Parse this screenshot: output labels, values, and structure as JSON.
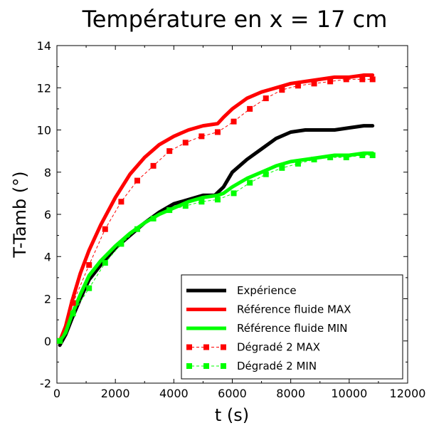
{
  "chart_data": {
    "type": "line",
    "title": "Température en x = 17 cm",
    "xlabel": "t (s)",
    "ylabel": "T-Tamb (°)",
    "xlim": [
      0,
      12000
    ],
    "ylim": [
      -2,
      14
    ],
    "xticks": [
      0,
      2000,
      4000,
      6000,
      8000,
      10000,
      12000
    ],
    "yticks": [
      -2,
      0,
      2,
      4,
      6,
      8,
      10,
      12,
      14
    ],
    "grid": false,
    "legend_position": "bottom-right",
    "series": [
      {
        "name": "Expérience",
        "style": "solid-thick",
        "color": "#000000",
        "x": [
          100,
          300,
          500,
          800,
          1100,
          1500,
          2000,
          2500,
          3000,
          3500,
          4000,
          4500,
          5000,
          5400,
          5700,
          6000,
          6500,
          7000,
          7500,
          8000,
          8500,
          9000,
          9500,
          10000,
          10500,
          10800
        ],
        "y": [
          -0.2,
          0.3,
          1.0,
          2.0,
          2.9,
          3.6,
          4.4,
          5.0,
          5.6,
          6.1,
          6.5,
          6.7,
          6.9,
          6.9,
          7.3,
          8.0,
          8.6,
          9.1,
          9.6,
          9.9,
          10.0,
          10.0,
          10.0,
          10.1,
          10.2,
          10.2
        ]
      },
      {
        "name": "Référence fluide MAX",
        "style": "solid-thick",
        "color": "#ff0000",
        "x": [
          100,
          300,
          500,
          800,
          1100,
          1500,
          2000,
          2500,
          3000,
          3500,
          4000,
          4500,
          5000,
          5500,
          5700,
          6000,
          6500,
          7000,
          7500,
          8000,
          8500,
          9000,
          9500,
          10000,
          10500,
          10800
        ],
        "y": [
          0.0,
          0.7,
          1.8,
          3.2,
          4.3,
          5.5,
          6.8,
          7.9,
          8.7,
          9.3,
          9.7,
          10.0,
          10.2,
          10.3,
          10.6,
          11.0,
          11.5,
          11.8,
          12.0,
          12.2,
          12.3,
          12.4,
          12.5,
          12.5,
          12.6,
          12.6
        ]
      },
      {
        "name": "Référence fluide MIN",
        "style": "solid-thick",
        "color": "#00ff00",
        "x": [
          100,
          300,
          500,
          800,
          1100,
          1500,
          2000,
          2500,
          3000,
          3500,
          4000,
          4500,
          5000,
          5500,
          5700,
          6000,
          6500,
          7000,
          7500,
          8000,
          8500,
          9000,
          9500,
          10000,
          10500,
          10800
        ],
        "y": [
          0.0,
          0.4,
          1.2,
          2.2,
          3.1,
          3.8,
          4.5,
          5.1,
          5.6,
          6.0,
          6.3,
          6.6,
          6.8,
          6.9,
          7.0,
          7.3,
          7.7,
          8.0,
          8.3,
          8.5,
          8.6,
          8.7,
          8.8,
          8.8,
          8.9,
          8.9
        ]
      },
      {
        "name": "Dégradé 2 MAX",
        "style": "dashed-square",
        "color": "#ff0000",
        "x": [
          100,
          550,
          1100,
          1650,
          2200,
          2750,
          3300,
          3850,
          4400,
          4950,
          5500,
          6050,
          6600,
          7150,
          7700,
          8250,
          8800,
          9350,
          9900,
          10450,
          10800
        ],
        "y": [
          0.0,
          1.8,
          3.6,
          5.3,
          6.6,
          7.6,
          8.3,
          9.0,
          9.4,
          9.7,
          9.9,
          10.4,
          11.0,
          11.5,
          11.9,
          12.1,
          12.2,
          12.3,
          12.4,
          12.4,
          12.4
        ]
      },
      {
        "name": "Dégradé 2 MIN",
        "style": "dashed-square",
        "color": "#00ff00",
        "x": [
          100,
          550,
          1100,
          1650,
          2200,
          2750,
          3300,
          3850,
          4400,
          4950,
          5500,
          6050,
          6600,
          7150,
          7700,
          8250,
          8800,
          9350,
          9900,
          10450,
          10800
        ],
        "y": [
          0.0,
          1.3,
          2.5,
          3.7,
          4.6,
          5.3,
          5.8,
          6.2,
          6.4,
          6.6,
          6.7,
          7.0,
          7.5,
          7.9,
          8.2,
          8.4,
          8.6,
          8.7,
          8.7,
          8.8,
          8.8
        ]
      }
    ]
  }
}
